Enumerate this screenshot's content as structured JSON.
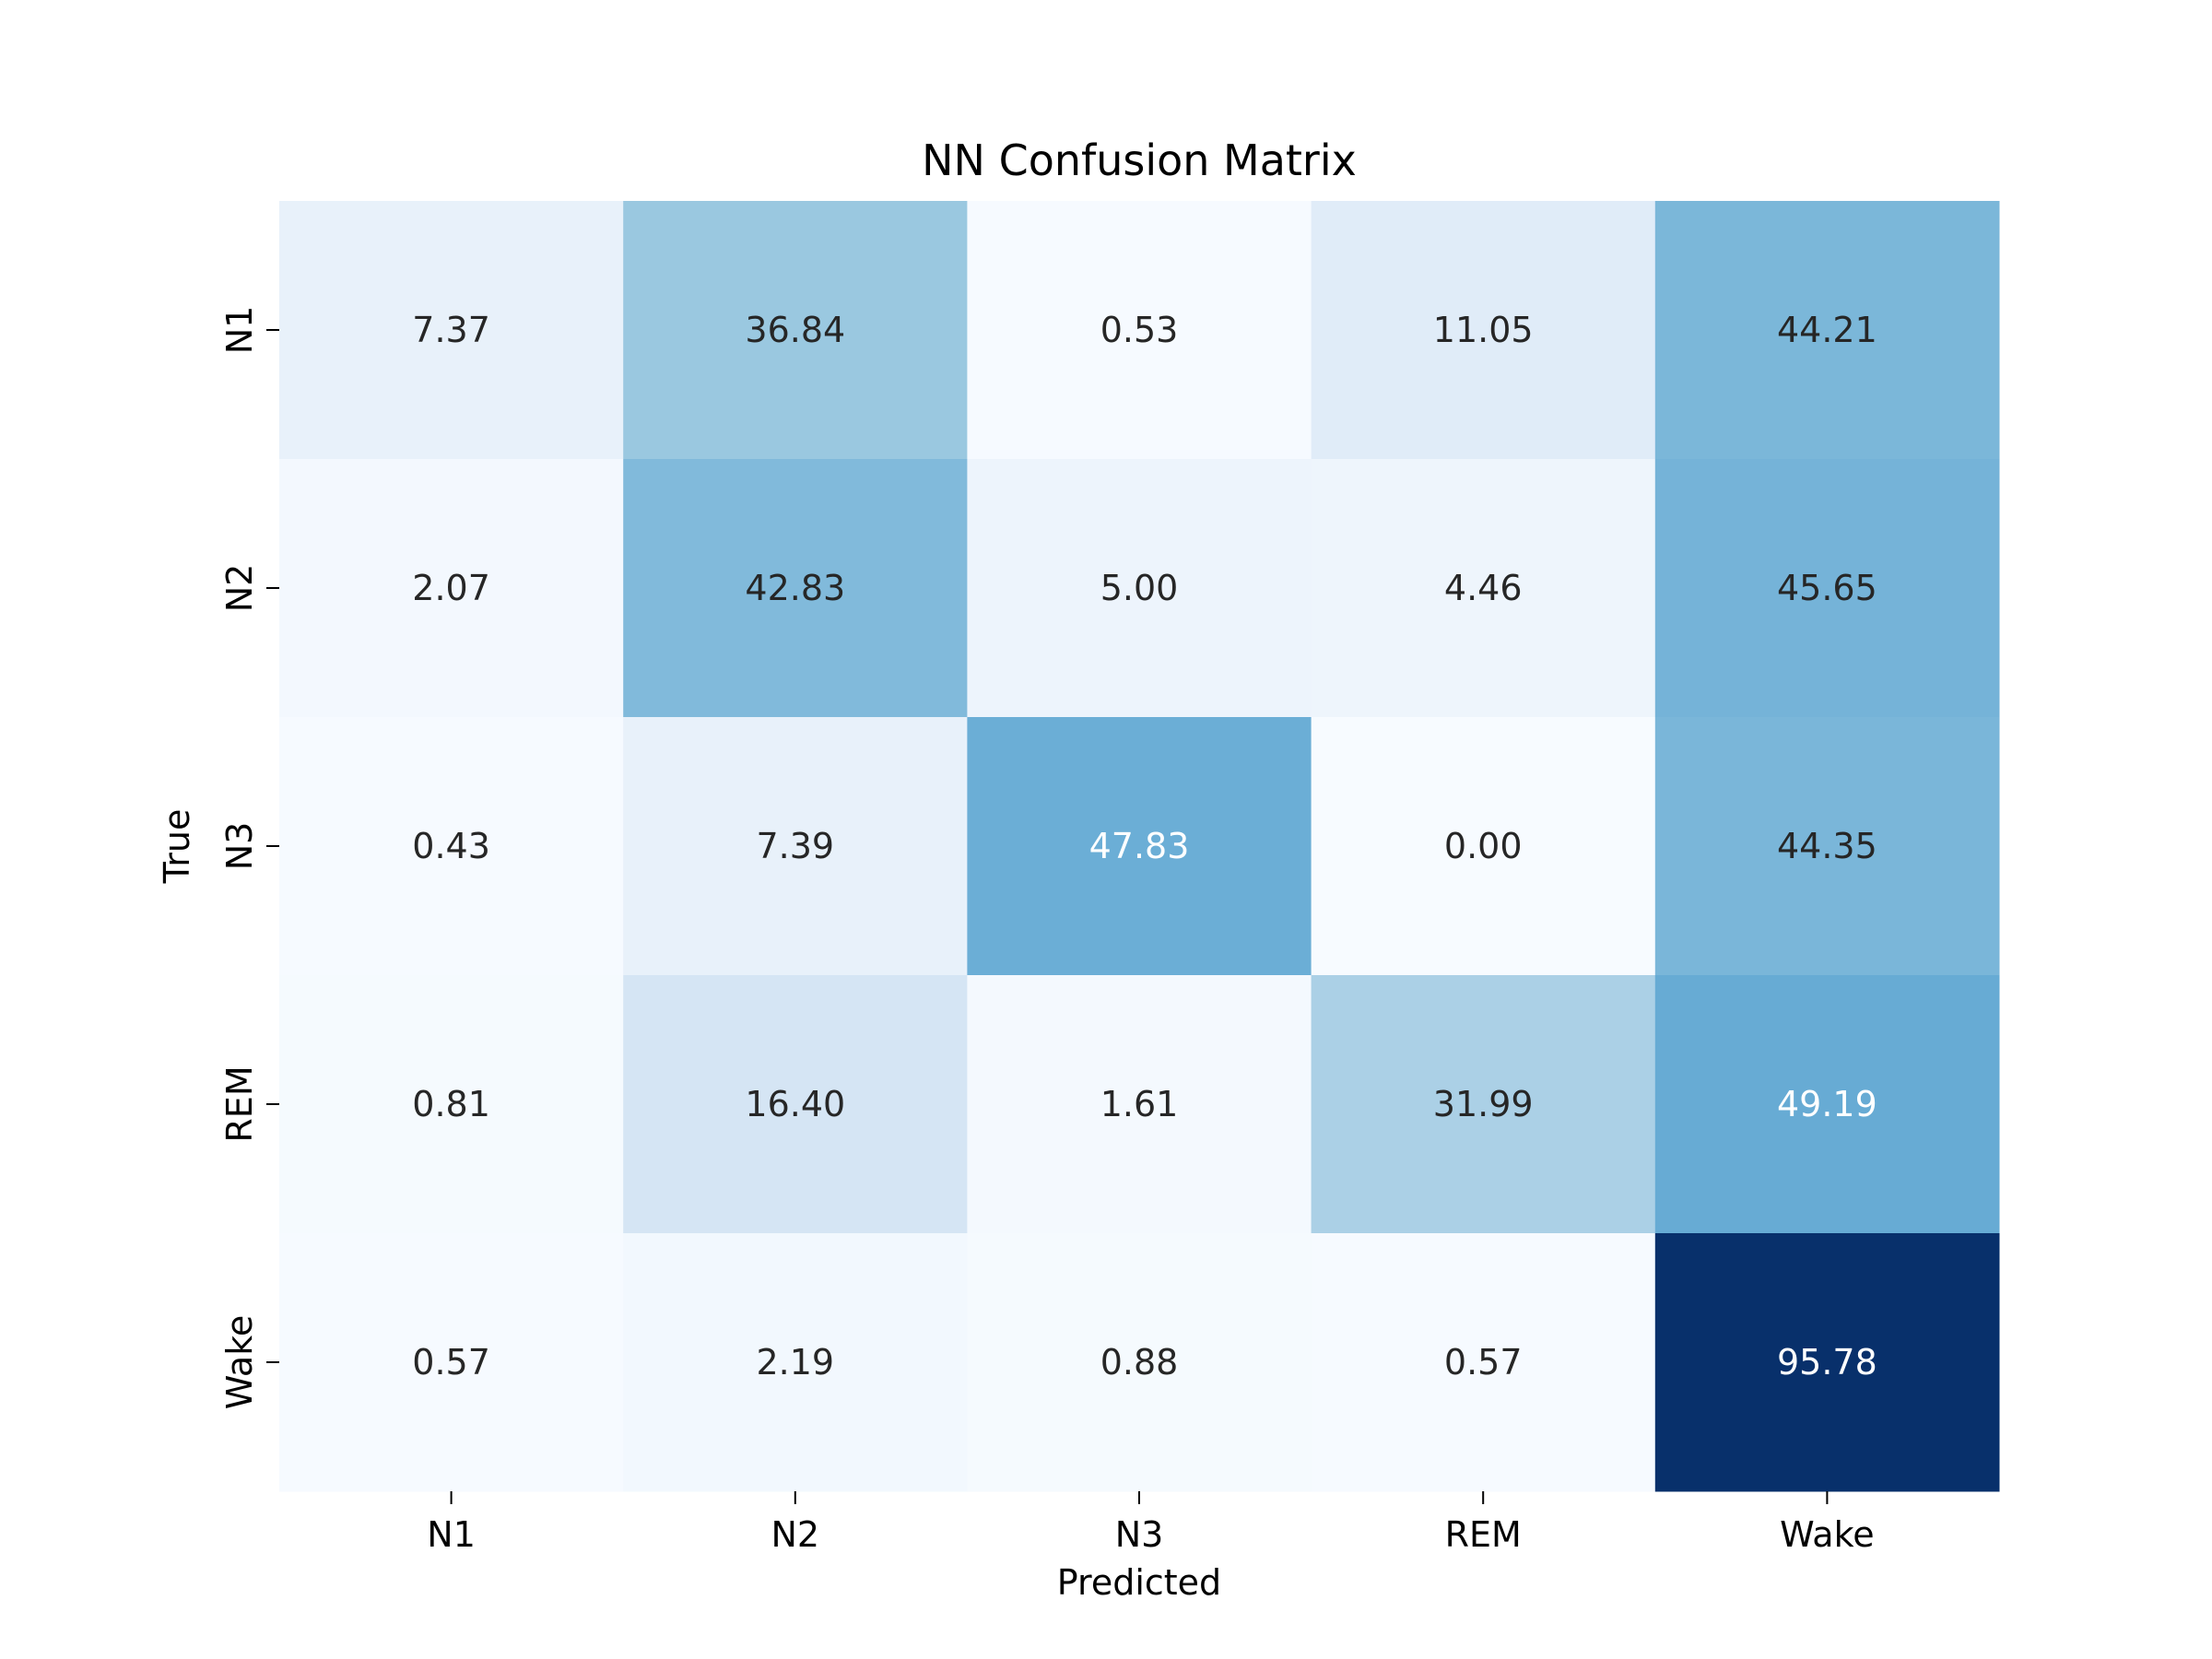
{
  "chart_data": {
    "type": "heatmap",
    "title": "NN Confusion Matrix",
    "xlabel": "Predicted",
    "ylabel": "True",
    "x_categories": [
      "N1",
      "N2",
      "N3",
      "REM",
      "Wake"
    ],
    "y_categories": [
      "N1",
      "N2",
      "N3",
      "REM",
      "Wake"
    ],
    "values": [
      [
        "7.37",
        "36.84",
        "0.53",
        "11.05",
        "44.21"
      ],
      [
        "2.07",
        "42.83",
        "5.00",
        "4.46",
        "45.65"
      ],
      [
        "0.43",
        "7.39",
        "47.83",
        "0.00",
        "44.35"
      ],
      [
        "0.81",
        "16.40",
        "1.61",
        "31.99",
        "49.19"
      ],
      [
        "0.57",
        "2.19",
        "0.88",
        "0.57",
        "95.78"
      ]
    ],
    "colormap": "Blues",
    "colorbar": false,
    "vmin": 0,
    "vmax": 95.78
  }
}
